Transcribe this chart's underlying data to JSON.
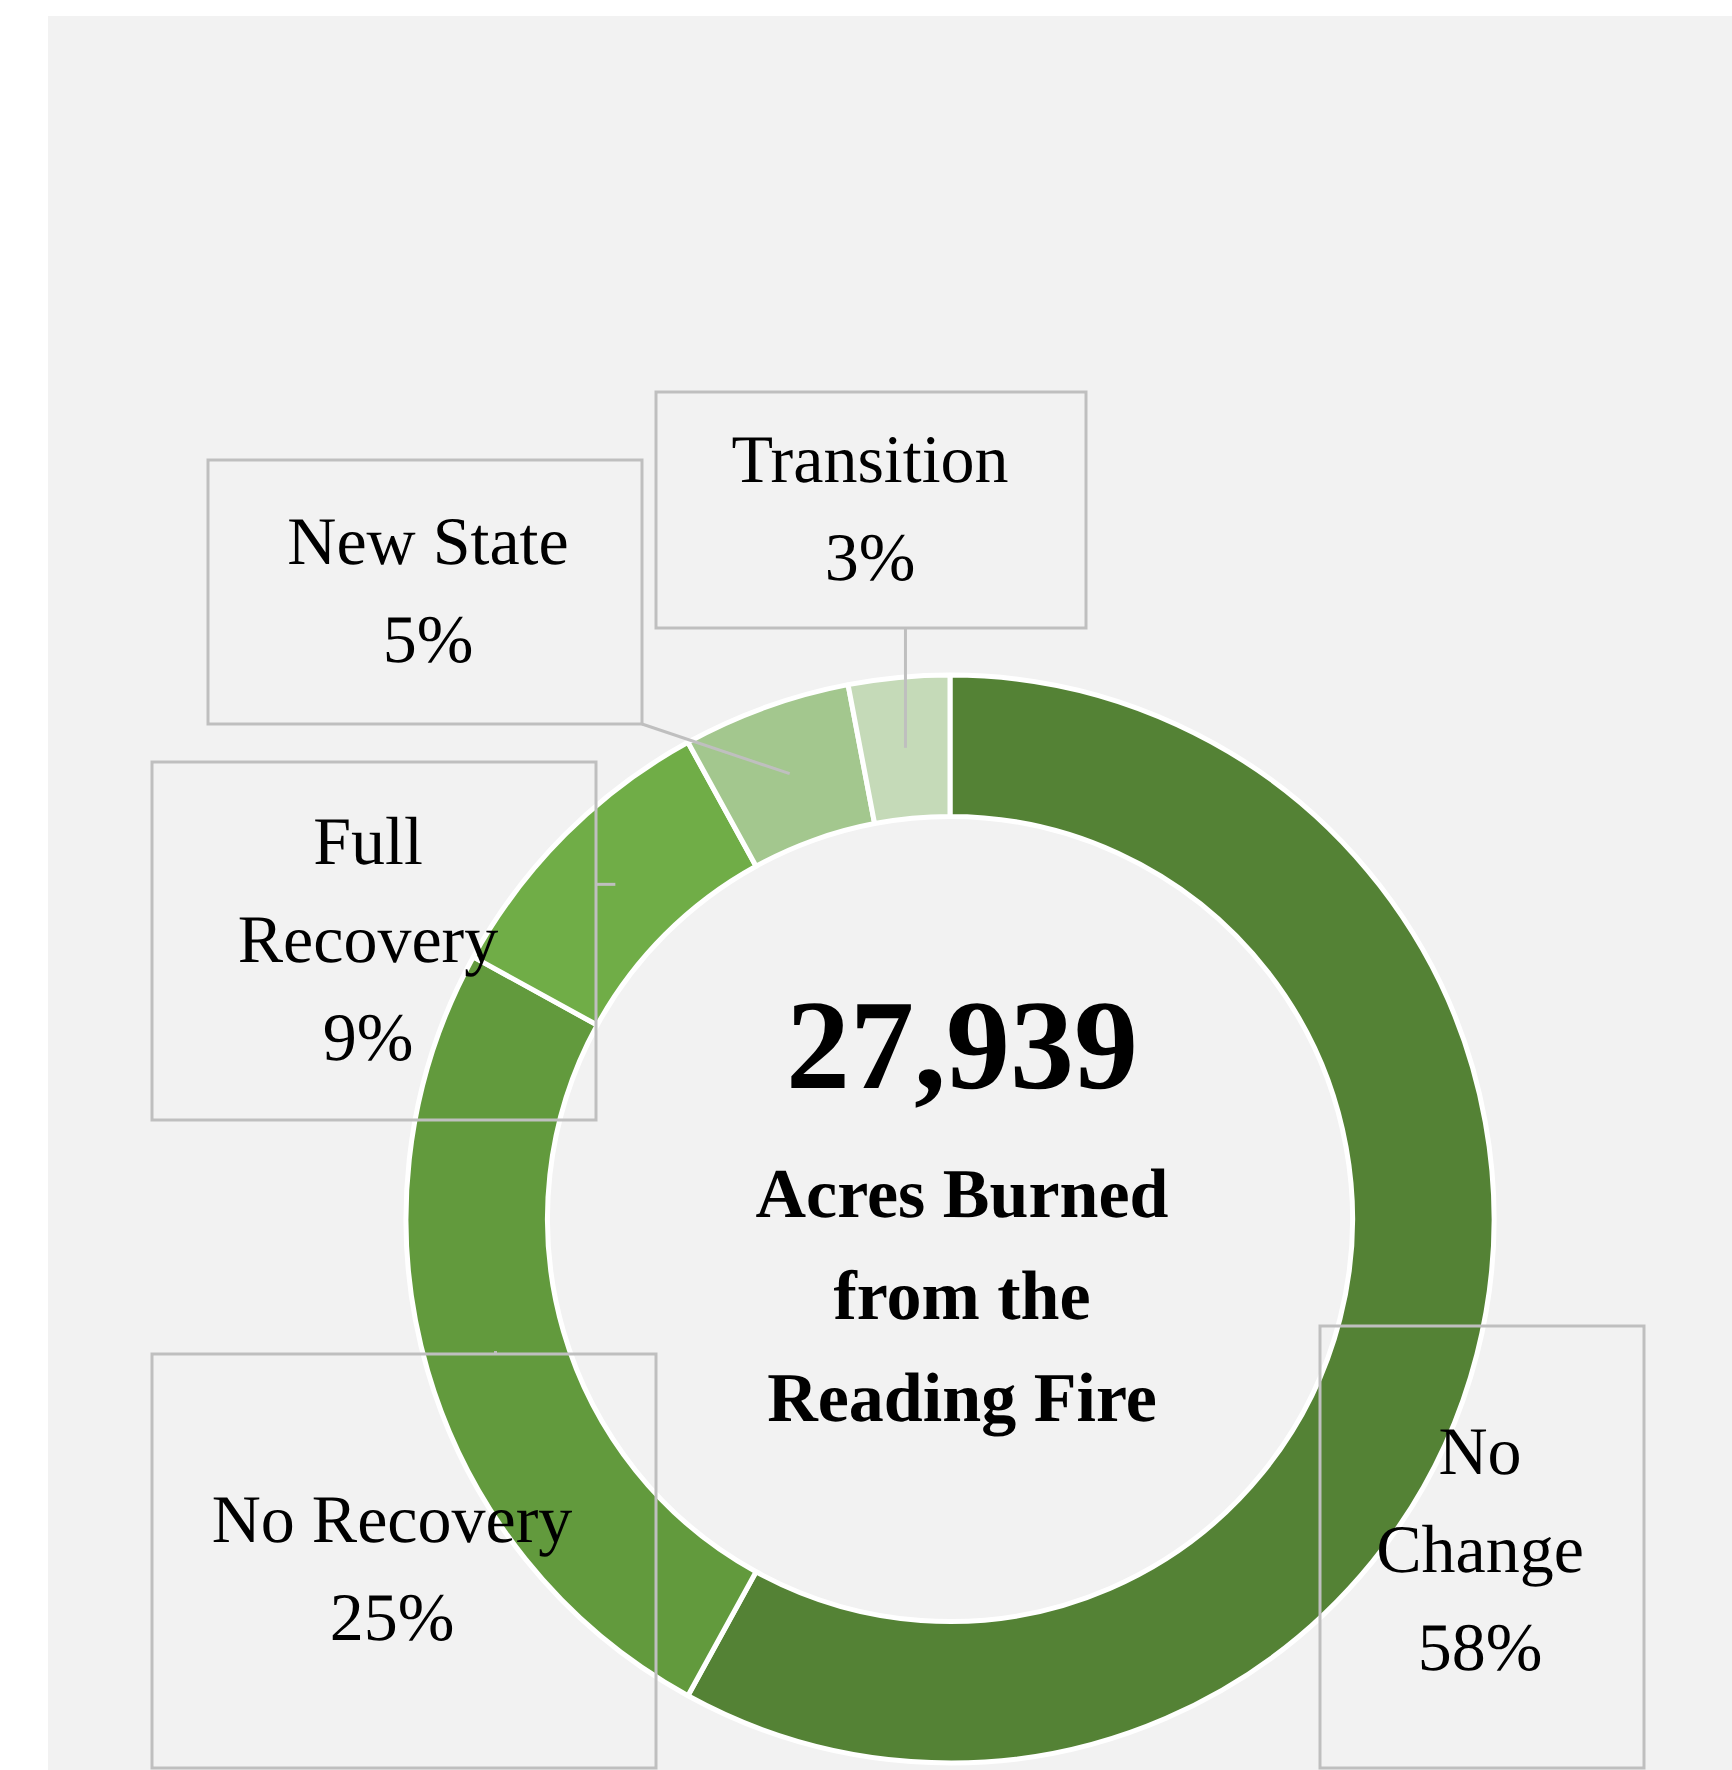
{
  "chart_data": {
    "type": "donut",
    "categories": [
      "No Change",
      "No Recovery",
      "Full Recovery",
      "New State",
      "Transition"
    ],
    "values": [
      58,
      25,
      9,
      5,
      3
    ],
    "colors": [
      "#548235",
      "#629a3d",
      "#70ad47",
      "#a3c78e",
      "#c5dab8"
    ],
    "value_labels": [
      "58%",
      "25%",
      "9%",
      "5%",
      "3%"
    ],
    "annotations": [
      "27,939",
      "Acres Burned from the Reading Fire"
    ],
    "legend": false
  }
}
